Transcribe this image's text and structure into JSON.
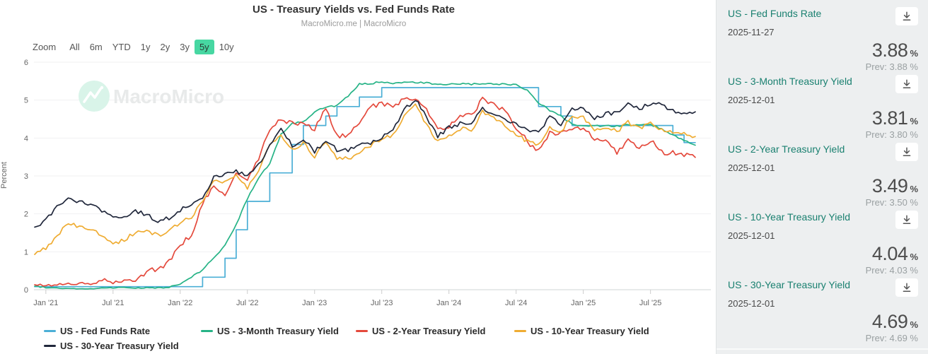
{
  "header": {
    "title": "US - Treasury Yields vs. Fed Funds Rate",
    "subtitle": "MacroMicro.me | MacroMicro"
  },
  "toolbar": {
    "zoom_label": "Zoom",
    "ranges": [
      "All",
      "6m",
      "YTD",
      "1y",
      "2y",
      "3y",
      "5y",
      "10y"
    ],
    "active_range": "5y"
  },
  "watermark": {
    "text": "MacroMicro"
  },
  "chart_data": {
    "type": "line",
    "title": "US - Treasury Yields vs. Fed Funds Rate",
    "subtitle": "MacroMicro.me | MacroMicro",
    "xlabel": "",
    "ylabel": "Percent",
    "ylim": [
      0,
      6
    ],
    "yticks": [
      0,
      1,
      2,
      3,
      4,
      5,
      6
    ],
    "x_start_month": "2020-12",
    "x_months_per_point": 1,
    "xticklabels": [
      "Jan '21",
      "Jul '21",
      "Jan '22",
      "Jul '22",
      "Jan '23",
      "Jul '23",
      "Jan '24",
      "Jul '24",
      "Jan '25",
      "Jul '25"
    ],
    "grid": "horizontal",
    "legend_position": "bottom",
    "series": [
      {
        "name": "US - Fed Funds Rate",
        "color": "#4bafd6",
        "step": true,
        "values": [
          0.08,
          0.08,
          0.08,
          0.08,
          0.08,
          0.08,
          0.08,
          0.08,
          0.08,
          0.08,
          0.08,
          0.08,
          0.08,
          0.08,
          0.08,
          0.33,
          0.33,
          0.83,
          1.58,
          2.33,
          2.33,
          3.08,
          3.08,
          3.83,
          4.33,
          4.33,
          4.58,
          4.83,
          4.83,
          5.08,
          5.08,
          5.33,
          5.33,
          5.33,
          5.33,
          5.33,
          5.33,
          5.33,
          5.33,
          5.33,
          5.33,
          5.33,
          5.33,
          5.33,
          5.33,
          4.83,
          4.83,
          4.58,
          4.33,
          4.33,
          4.33,
          4.33,
          4.33,
          4.33,
          4.33,
          4.33,
          4.33,
          4.08,
          3.88,
          3.88
        ]
      },
      {
        "name": "US - 3-Month Treasury Yield",
        "color": "#26b386",
        "step": false,
        "values": [
          0.09,
          0.06,
          0.04,
          0.03,
          0.02,
          0.02,
          0.05,
          0.05,
          0.06,
          0.04,
          0.05,
          0.05,
          0.06,
          0.15,
          0.33,
          0.52,
          0.85,
          1.16,
          1.72,
          2.41,
          2.96,
          3.33,
          4.09,
          4.39,
          4.42,
          4.7,
          4.81,
          4.86,
          5.1,
          5.42,
          5.43,
          5.49,
          5.45,
          5.46,
          5.47,
          5.45,
          5.4,
          5.42,
          5.43,
          5.42,
          5.42,
          5.43,
          5.42,
          5.41,
          5.26,
          4.93,
          4.73,
          4.58,
          4.37,
          4.32,
          4.32,
          4.32,
          4.31,
          4.35,
          4.34,
          4.35,
          4.25,
          4.07,
          3.95,
          3.81
        ]
      },
      {
        "name": "US - 2-Year Treasury Yield",
        "color": "#e4493c",
        "step": false,
        "values": [
          0.13,
          0.11,
          0.13,
          0.16,
          0.16,
          0.14,
          0.25,
          0.19,
          0.21,
          0.28,
          0.48,
          0.56,
          0.73,
          1.18,
          1.44,
          2.28,
          2.7,
          2.53,
          3.04,
          2.89,
          3.45,
          4.22,
          4.51,
          4.38,
          4.41,
          4.21,
          4.81,
          4.06,
          4.04,
          4.4,
          4.87,
          4.88,
          4.85,
          5.03,
          5.07,
          4.73,
          4.23,
          4.27,
          4.64,
          4.59,
          5.04,
          4.87,
          4.71,
          4.29,
          3.91,
          3.66,
          4.16,
          4.13,
          4.24,
          4.22,
          3.99,
          3.89,
          3.6,
          3.99,
          3.71,
          3.94,
          3.62,
          3.6,
          3.58,
          3.49
        ]
      },
      {
        "name": "US - 10-Year Treasury Yield",
        "color": "#efac32",
        "step": false,
        "values": [
          0.93,
          1.09,
          1.44,
          1.74,
          1.65,
          1.58,
          1.45,
          1.24,
          1.3,
          1.52,
          1.55,
          1.43,
          1.52,
          1.79,
          1.93,
          2.32,
          2.89,
          2.85,
          3.01,
          2.67,
          3.15,
          3.83,
          4.1,
          3.68,
          3.88,
          3.52,
          3.92,
          3.48,
          3.44,
          3.64,
          3.81,
          3.97,
          4.09,
          4.59,
          4.88,
          4.37,
          3.88,
          4.05,
          4.25,
          4.2,
          4.68,
          4.51,
          4.36,
          4.09,
          3.91,
          3.81,
          4.28,
          4.18,
          4.58,
          4.54,
          4.24,
          4.27,
          4.17,
          4.41,
          4.24,
          4.37,
          4.23,
          4.15,
          4.1,
          4.04
        ]
      },
      {
        "name": "US - 30-Year Treasury Yield",
        "color": "#20273b",
        "step": false,
        "values": [
          1.65,
          1.83,
          2.17,
          2.41,
          2.3,
          2.26,
          2.06,
          1.89,
          1.94,
          2.08,
          1.98,
          1.79,
          1.9,
          2.11,
          2.25,
          2.45,
          2.96,
          3.05,
          3.14,
          2.98,
          3.27,
          3.79,
          4.22,
          3.8,
          3.97,
          3.65,
          3.93,
          3.69,
          3.68,
          3.86,
          3.85,
          4.02,
          4.2,
          4.73,
          5.04,
          4.54,
          4.03,
          4.28,
          4.38,
          4.34,
          4.79,
          4.65,
          4.51,
          4.36,
          4.2,
          4.14,
          4.55,
          4.36,
          4.78,
          4.77,
          4.51,
          4.63,
          4.68,
          4.93,
          4.78,
          4.9,
          4.88,
          4.73,
          4.65,
          4.69
        ]
      }
    ]
  },
  "sidebar": {
    "cards": [
      {
        "title": "US - Fed Funds Rate",
        "date": "2025-11-27",
        "value": "3.88",
        "unit": "%",
        "prev_label": "Prev:",
        "prev_value": "3.88 %"
      },
      {
        "title": "US - 3-Month Treasury Yield",
        "date": "2025-12-01",
        "value": "3.81",
        "unit": "%",
        "prev_label": "Prev:",
        "prev_value": "3.80 %"
      },
      {
        "title": "US - 2-Year Treasury Yield",
        "date": "2025-12-01",
        "value": "3.49",
        "unit": "%",
        "prev_label": "Prev:",
        "prev_value": "3.50 %"
      },
      {
        "title": "US - 10-Year Treasury Yield",
        "date": "2025-12-01",
        "value": "4.04",
        "unit": "%",
        "prev_label": "Prev:",
        "prev_value": "4.03 %"
      },
      {
        "title": "US - 30-Year Treasury Yield",
        "date": "2025-12-01",
        "value": "4.69",
        "unit": "%",
        "prev_label": "Prev:",
        "prev_value": "4.69 %"
      }
    ]
  }
}
